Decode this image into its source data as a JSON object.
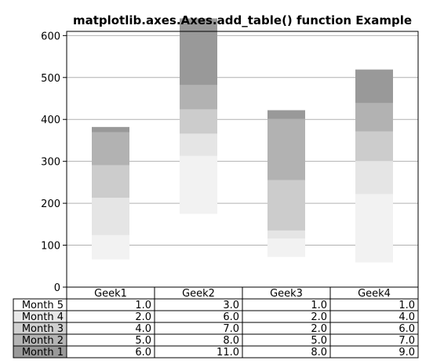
{
  "chart_data": {
    "type": "bar",
    "stacked": true,
    "title": "matplotlib.axes.Axes.add_table() function Example",
    "xlabel": "",
    "ylabel": "",
    "ylim": [
      0,
      610
    ],
    "yticks": [
      0,
      100,
      200,
      300,
      400,
      500,
      600
    ],
    "grid": "y",
    "categories": [
      "Geek1",
      "Geek2",
      "Geek3",
      "Geek4"
    ],
    "series": [
      {
        "name": "Month 1",
        "base": [
          66,
          175,
          72,
          59
        ],
        "values": [
          58,
          138,
          44,
          163
        ],
        "color": "#f2f2f2"
      },
      {
        "name": "Month 2",
        "values": [
          89,
          53,
          19,
          79
        ],
        "color": "#e5e5e5"
      },
      {
        "name": "Month 3",
        "values": [
          78,
          58,
          120,
          70
        ],
        "color": "#cccccc"
      },
      {
        "name": "Month 4",
        "values": [
          78,
          58,
          146,
          68
        ],
        "color": "#b2b2b2"
      },
      {
        "name": "Month 5",
        "values": [
          13,
          159,
          21,
          80
        ],
        "color": "#999999"
      }
    ],
    "table": {
      "col_labels": [
        "Geek1",
        "Geek2",
        "Geek3",
        "Geek4"
      ],
      "row_labels": [
        "Month 5",
        "Month 4",
        "Month 3",
        "Month 2",
        "Month 1"
      ],
      "row_colors": [
        "#ffffff",
        "#e8e8e8",
        "#d0d0d0",
        "#b4b4b4",
        "#999999"
      ],
      "cells": [
        [
          "1.0",
          "3.0",
          "1.0",
          "1.0"
        ],
        [
          "2.0",
          "6.0",
          "2.0",
          "4.0"
        ],
        [
          "4.0",
          "7.0",
          "2.0",
          "6.0"
        ],
        [
          "5.0",
          "8.0",
          "5.0",
          "7.0"
        ],
        [
          "6.0",
          "11.0",
          "8.0",
          "9.0"
        ]
      ]
    }
  }
}
